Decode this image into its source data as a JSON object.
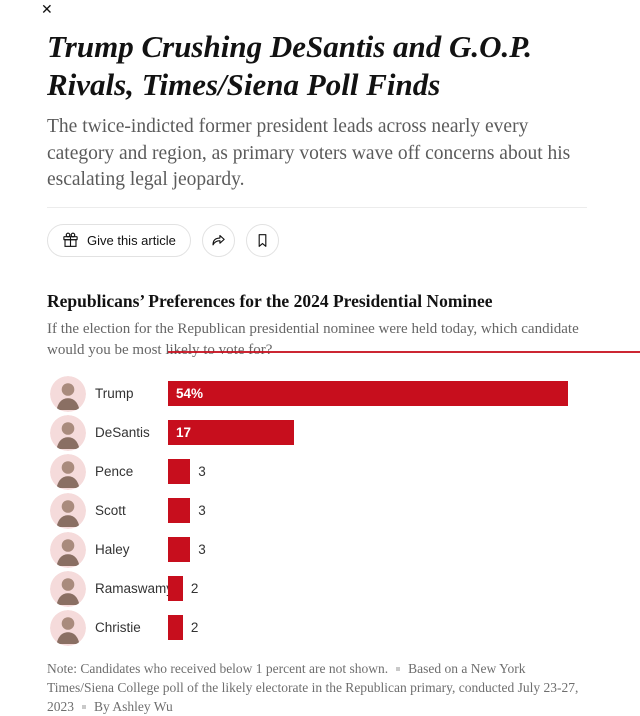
{
  "window": {
    "close_glyph": "✕"
  },
  "article": {
    "headline": "Trump Crushing DeSantis and G.O.P. Rivals, Times/Siena Poll Finds",
    "summary": "The twice-indicted former president leads across nearly every category and region, as primary voters wave off concerns about his escalating legal jeopardy.",
    "toolbar": {
      "give_label": "Give this article",
      "icons": [
        "gift-icon",
        "share-arrow-icon",
        "bookmark-icon"
      ]
    }
  },
  "chart_data": {
    "type": "bar",
    "orientation": "horizontal",
    "title": "Republicans’ Preferences for the 2024 Presidential Nominee",
    "subtitle": "If the election for the Republican presidential nominee were held today, which candidate would you be most likely to vote for?",
    "categories": [
      "Trump",
      "DeSantis",
      "Pence",
      "Scott",
      "Haley",
      "Ramaswamy",
      "Christie"
    ],
    "values": [
      54,
      17,
      3,
      3,
      3,
      2,
      2
    ],
    "value_labels": [
      "54%",
      "17",
      "3",
      "3",
      "3",
      "2",
      "2"
    ],
    "xlim": [
      0,
      54
    ],
    "grid": false,
    "legend": "none",
    "label_inside_threshold": 10,
    "bar_color": "#c70e1d",
    "avatar_bg": "#f5dbdb"
  },
  "note": {
    "segments": [
      "Note: Candidates who received below 1 percent are not shown.",
      "Based on a New York Times/Siena College poll of the likely electorate in the Republican primary, conducted July 23-27, 2023",
      "By Ashley Wu"
    ]
  },
  "colors": {
    "accent_red": "#c70e1d",
    "headline_text": "#121212",
    "summary_gray": "#5b5b5b",
    "note_gray": "#6e6e6e",
    "border_gray": "#e2e2e2"
  }
}
